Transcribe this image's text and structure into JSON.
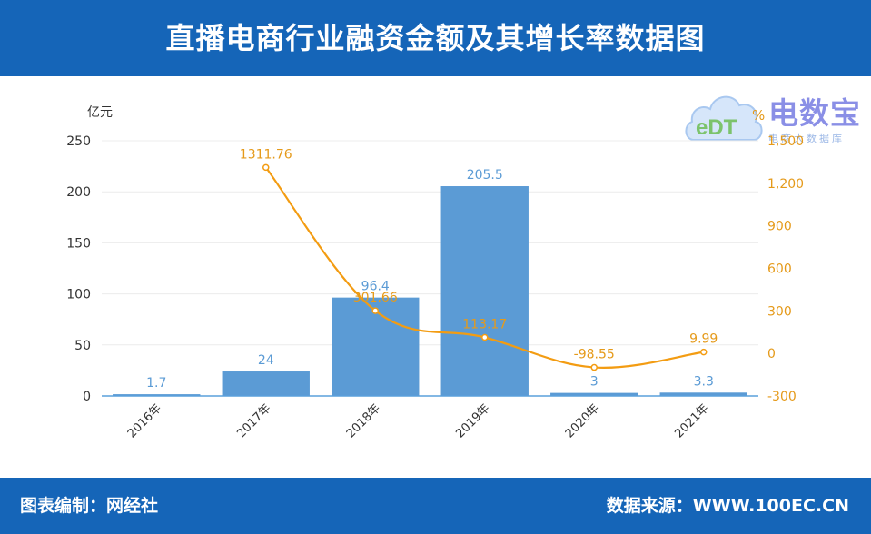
{
  "header": {
    "title": "直播电商行业融资金额及其增长率数据图"
  },
  "footer": {
    "editor": "图表编制：网经社",
    "source": "数据来源：WWW.100EC.CN"
  },
  "logo": {
    "brand": "电数宝",
    "sub": "电商大数据库",
    "mark": "eDT"
  },
  "colors": {
    "header_bg": "#1565b8",
    "bar": "#5b9bd5",
    "line": "#f39c12",
    "left_labels": "#5b9bd5",
    "right_labels": "#e59a1a"
  },
  "chart_data": {
    "type": "bar",
    "categories": [
      "2016年",
      "2017年",
      "2018年",
      "2019年",
      "2020年",
      "2021年"
    ],
    "series": [
      {
        "type": "bar",
        "axis": "left",
        "values": [
          1.7,
          24,
          96.4,
          205.5,
          3,
          3.3
        ]
      },
      {
        "type": "line",
        "axis": "right",
        "values": [
          null,
          1311.76,
          301.66,
          113.17,
          -98.55,
          9.99
        ]
      }
    ],
    "left_axis": {
      "unit": "亿元",
      "ylim": [
        0,
        250
      ],
      "ticks": [
        0,
        50,
        100,
        150,
        200,
        250
      ]
    },
    "right_axis": {
      "unit": "%",
      "ylim": [
        -300,
        1500
      ],
      "ticks": [
        "-300",
        "0",
        "300",
        "600",
        "900",
        "1,200",
        "1,500"
      ]
    },
    "grid": true
  }
}
